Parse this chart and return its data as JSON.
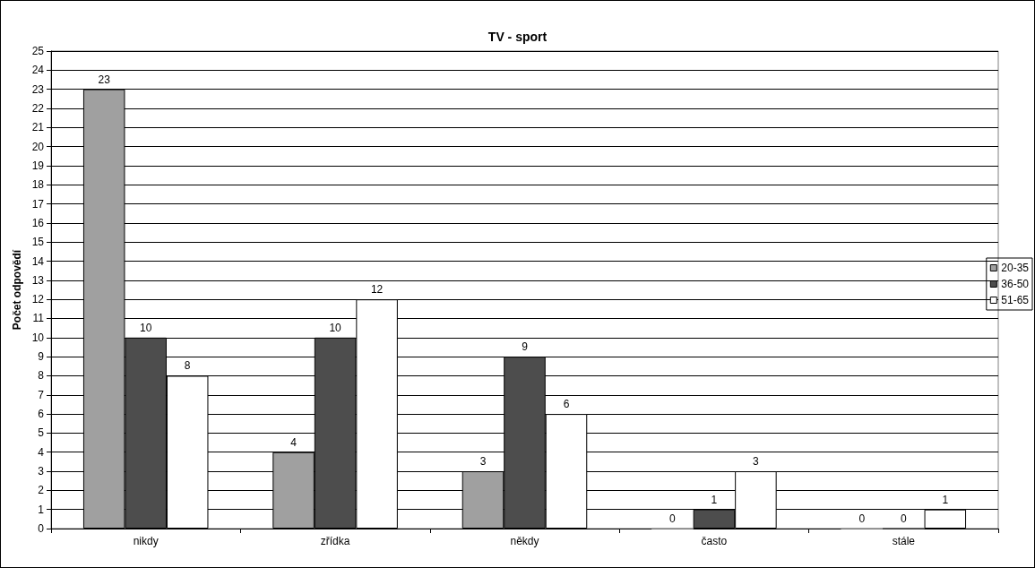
{
  "chart_data": {
    "type": "bar",
    "title": "TV - sport",
    "ylabel": "Počet odpovědí",
    "categories": [
      "nikdy",
      "zřídka",
      "někdy",
      "často",
      "stále"
    ],
    "series": [
      {
        "name": "20-35",
        "color": "#a0a0a0",
        "values": [
          23,
          4,
          3,
          0,
          0
        ]
      },
      {
        "name": "36-50",
        "color": "#4d4d4d",
        "values": [
          10,
          10,
          9,
          1,
          0
        ]
      },
      {
        "name": "51-65",
        "color": "#ffffff",
        "values": [
          8,
          12,
          6,
          3,
          1
        ]
      }
    ],
    "ylim": [
      0,
      25
    ],
    "yticks": [
      0,
      1,
      2,
      3,
      4,
      5,
      6,
      7,
      8,
      9,
      10,
      11,
      12,
      13,
      14,
      15,
      16,
      17,
      18,
      19,
      20,
      21,
      22,
      23,
      24,
      25
    ],
    "grid": "y",
    "legend": "right",
    "data_labels": true
  }
}
